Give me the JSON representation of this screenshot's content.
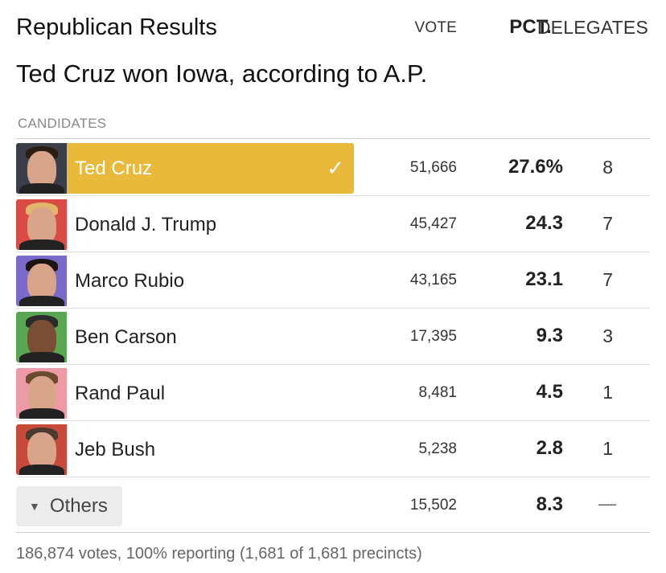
{
  "header": {
    "title": "Republican Results",
    "subtitle": "Ted Cruz won Iowa, according to A.P."
  },
  "table": {
    "columns": {
      "candidates": "CANDIDATES",
      "vote": "VOTE",
      "pct": "PCT.",
      "delegates": "DELEGATES"
    },
    "rows": [
      {
        "name": "Ted Cruz",
        "vote": "51,666",
        "pct": "27.6%",
        "delegates": "8",
        "winner": true,
        "avatar_bg": "#3a3f4a",
        "hair": "#2a1d14",
        "check_icon": "✓"
      },
      {
        "name": "Donald J. Trump",
        "vote": "45,427",
        "pct": "24.3",
        "delegates": "7",
        "avatar_bg": "#d94c45",
        "hair": "#e2b56a"
      },
      {
        "name": "Marco Rubio",
        "vote": "43,165",
        "pct": "23.1",
        "delegates": "7",
        "avatar_bg": "#7a6ac9",
        "hair": "#1c1410"
      },
      {
        "name": "Ben Carson",
        "vote": "17,395",
        "pct": "9.3",
        "delegates": "3",
        "avatar_bg": "#5aa652",
        "hair": "#2b2b2b"
      },
      {
        "name": "Rand Paul",
        "vote": "8,481",
        "pct": "4.5",
        "delegates": "1",
        "avatar_bg": "#ee9aa6",
        "hair": "#6b4a2e"
      },
      {
        "name": "Jeb Bush",
        "vote": "5,238",
        "pct": "2.8",
        "delegates": "1",
        "avatar_bg": "#c84a3a",
        "hair": "#4a3a30"
      }
    ],
    "others": {
      "label": "Others",
      "caret_icon": "▼",
      "vote": "15,502",
      "pct": "8.3",
      "delegates": "—"
    }
  },
  "footer": {
    "text": "186,874 votes, 100% reporting (1,681 of 1,681 precincts)"
  },
  "colors": {
    "winner_highlight": "#e8b93b"
  }
}
